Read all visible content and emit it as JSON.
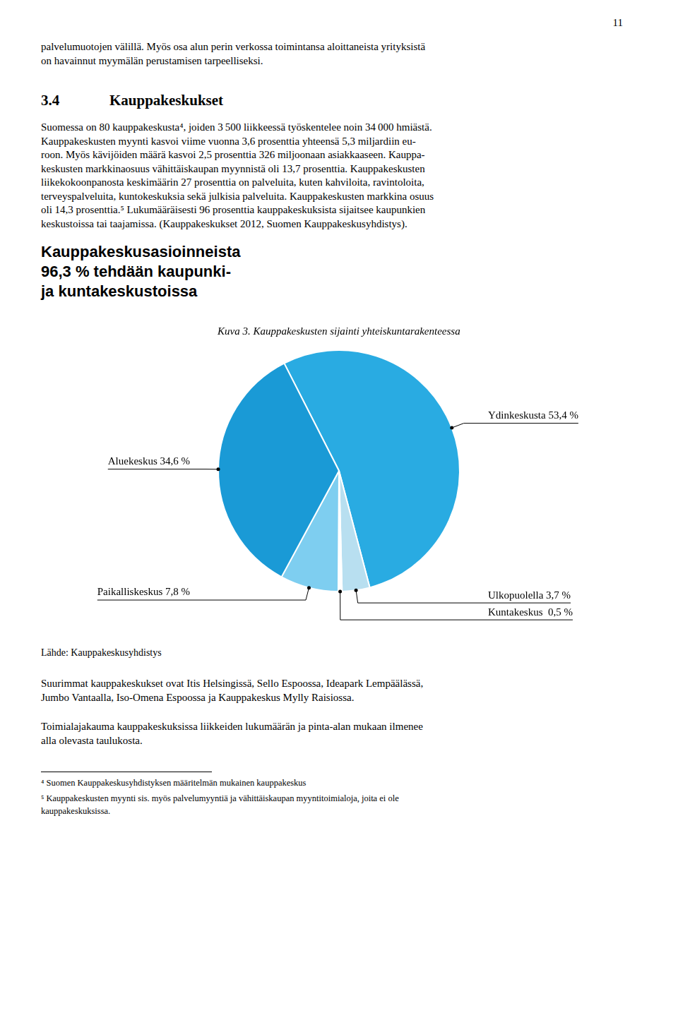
{
  "chart_data": {
    "type": "pie",
    "title": "Kuva 3. Kauppakeskusten sijainti yhteiskuntarakenteessa",
    "categories": [
      "Ydinkeskusta 53,4 %",
      "Ulkopuolella 3,7 %",
      "Kuntakeskus  0,5 %",
      "Paikalliskeskus 7,8 %",
      "Aluekeskus 34,6 %"
    ],
    "values": [
      53.4,
      3.7,
      0.5,
      7.8,
      34.6
    ],
    "colors": [
      "#29ABE2",
      "#B8DFF0",
      "#FFFFFF",
      "#7ECEF0",
      "#1A9AD6"
    ],
    "annotations": [
      "11",
      "palvelumuotojen välillä. Myös osa alun perin verkossa toimintansa aloittaneista yrityksistä",
      "on havainnut myymälän perustamisen tarpeelliseksi.",
      "3.4",
      "Kauppakeskukset",
      "Suomessa on 80 kauppakeskusta⁴, joiden 3 500 liikkeessä työskentelee noin 34 000 hmiästä.",
      "Kauppakeskusten myynti kasvoi viime vuonna 3,6 prosenttia yhteensä 5,3 miljardiin eu-",
      "roon. Myös kävijöiden määrä kasvoi 2,5 prosenttia 326 miljoonaan asiakkaaseen. Kauppa-",
      "keskusten markkinaosuus vähittäiskaupan myynnistä oli 13,7 prosenttia. Kauppakeskusten",
      "liikekokoonpanosta keskimäärin 27 prosenttia on palveluita, kuten kahviloita, ravintoloita,",
      "terveyspalveluita, kuntokeskuksia sekä julkisia palveluita. Kauppakeskusten markkina osuus",
      "oli 14,3 prosenttia.⁵  Lukumääräisesti 96 prosenttia kauppakeskuksista sijaitsee kaupunkien",
      "keskustoissa tai taajamissa. (Kauppakeskukset 2012, Suomen Kauppakeskusyhdistys).",
      "Kauppakeskusasioinneista",
      "96,3 % tehdään kaupunki-",
      "ja kuntakeskustoissa",
      "Lähde: Kauppakeskusyhdistys",
      "Suurimmat kauppakeskukset ovat Itis Helsingissä, Sello Espoossa, Ideapark Lempäälässä,",
      "Jumbo Vantaalla, Iso-Omena Espoossa ja Kauppakeskus Mylly Raisiossa.",
      "Toimialajakauma kauppakeskuksissa liikkeiden lukumäärän ja pinta-alan mukaan ilmenee",
      "alla olevasta taulukosta.",
      "⁴ Suomen Kauppakeskusyhdistyksen määritelmän mukainen kauppakeskus",
      "⁵ Kauppakeskusten myynti sis. myös palvelumyyntiä ja vähittäiskaupan myyntitoimialoja, joita ei ole",
      "kauppakeskuksissa."
    ]
  }
}
